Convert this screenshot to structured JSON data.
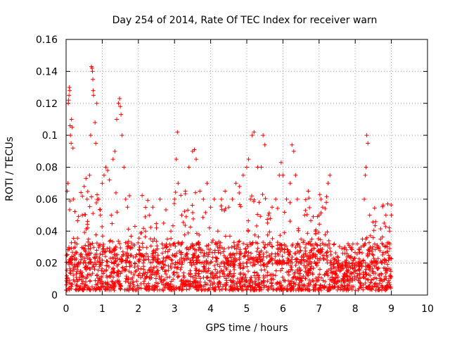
{
  "chart_data": {
    "type": "scatter",
    "title": "Day 254 of 2014, Rate Of TEC Index for receiver warn",
    "xlabel": "GPS time / hours",
    "ylabel": "ROTI / TECUs",
    "xlim": [
      0,
      10
    ],
    "ylim": [
      0,
      0.16
    ],
    "x_ticks": [
      "0",
      "1",
      "2",
      "3",
      "4",
      "5",
      "6",
      "7",
      "8",
      "9",
      "10"
    ],
    "y_ticks": [
      "0",
      "0.02",
      "0.04",
      "0.06",
      "0.08",
      "0.1",
      "0.12",
      "0.14",
      "0.16"
    ],
    "grid": true,
    "marker": "+",
    "marker_color": "#ff0000",
    "data_time_range_hours": [
      0,
      9
    ],
    "series": [
      {
        "name": "ROTI",
        "points": [
          [
            0.02,
            0.012
          ],
          [
            0.03,
            0.065
          ],
          [
            0.05,
            0.07
          ],
          [
            0.06,
            0.12
          ],
          [
            0.07,
            0.122
          ],
          [
            0.08,
            0.125
          ],
          [
            0.09,
            0.13
          ],
          [
            0.1,
            0.128
          ],
          [
            0.11,
            0.106
          ],
          [
            0.12,
            0.1
          ],
          [
            0.14,
            0.095
          ],
          [
            0.15,
            0.11
          ],
          [
            0.17,
            0.105
          ],
          [
            0.19,
            0.092
          ],
          [
            0.2,
            0.06
          ],
          [
            0.25,
            0.03
          ],
          [
            0.3,
            0.032
          ],
          [
            0.35,
            0.02
          ],
          [
            0.4,
            0.015
          ],
          [
            0.45,
            0.05
          ],
          [
            0.5,
            0.068
          ],
          [
            0.55,
            0.073
          ],
          [
            0.58,
            0.06
          ],
          [
            0.6,
            0.042
          ],
          [
            0.62,
            0.035
          ],
          [
            0.65,
            0.075
          ],
          [
            0.68,
            0.1
          ],
          [
            0.7,
            0.143
          ],
          [
            0.72,
            0.142
          ],
          [
            0.73,
            0.14
          ],
          [
            0.74,
            0.135
          ],
          [
            0.75,
            0.128
          ],
          [
            0.76,
            0.125
          ],
          [
            0.8,
            0.108
          ],
          [
            0.82,
            0.095
          ],
          [
            0.85,
            0.12
          ],
          [
            0.9,
            0.06
          ],
          [
            0.95,
            0.05
          ],
          [
            1.0,
            0.07
          ],
          [
            1.05,
            0.075
          ],
          [
            1.1,
            0.08
          ],
          [
            1.15,
            0.078
          ],
          [
            1.2,
            0.072
          ],
          [
            1.25,
            0.05
          ],
          [
            1.3,
            0.085
          ],
          [
            1.35,
            0.09
          ],
          [
            1.4,
            0.11
          ],
          [
            1.45,
            0.12
          ],
          [
            1.48,
            0.123
          ],
          [
            1.5,
            0.118
          ],
          [
            1.52,
            0.113
          ],
          [
            1.55,
            0.1
          ],
          [
            1.6,
            0.08
          ],
          [
            1.65,
            0.06
          ],
          [
            1.7,
            0.055
          ],
          [
            1.75,
            0.03
          ],
          [
            1.8,
            0.025
          ],
          [
            1.9,
            0.02
          ],
          [
            2.0,
            0.022
          ],
          [
            2.1,
            0.025
          ],
          [
            2.2,
            0.04
          ],
          [
            2.3,
            0.05
          ],
          [
            2.4,
            0.055
          ],
          [
            2.5,
            0.042
          ],
          [
            2.6,
            0.06
          ],
          [
            2.7,
            0.045
          ],
          [
            2.8,
            0.035
          ],
          [
            2.9,
            0.04
          ],
          [
            3.0,
            0.06
          ],
          [
            3.05,
            0.085
          ],
          [
            3.08,
            0.102
          ],
          [
            3.1,
            0.07
          ],
          [
            3.2,
            0.05
          ],
          [
            3.3,
            0.065
          ],
          [
            3.4,
            0.08
          ],
          [
            3.5,
            0.09
          ],
          [
            3.55,
            0.091
          ],
          [
            3.6,
            0.085
          ],
          [
            3.7,
            0.065
          ],
          [
            3.8,
            0.06
          ],
          [
            3.9,
            0.07
          ],
          [
            4.0,
            0.055
          ],
          [
            4.1,
            0.06
          ],
          [
            4.2,
            0.04
          ],
          [
            4.3,
            0.06
          ],
          [
            4.4,
            0.065
          ],
          [
            4.5,
            0.055
          ],
          [
            4.6,
            0.06
          ],
          [
            4.7,
            0.07
          ],
          [
            4.8,
            0.068
          ],
          [
            4.9,
            0.075
          ],
          [
            5.0,
            0.08
          ],
          [
            5.05,
            0.085
          ],
          [
            5.1,
            0.06
          ],
          [
            5.15,
            0.1
          ],
          [
            5.2,
            0.102
          ],
          [
            5.3,
            0.08
          ],
          [
            5.4,
            0.08
          ],
          [
            5.45,
            0.1
          ],
          [
            5.5,
            0.094
          ],
          [
            5.6,
            0.05
          ],
          [
            5.7,
            0.055
          ],
          [
            5.8,
            0.06
          ],
          [
            5.9,
            0.075
          ],
          [
            5.95,
            0.083
          ],
          [
            6.0,
            0.075
          ],
          [
            6.1,
            0.06
          ],
          [
            6.2,
            0.07
          ],
          [
            6.25,
            0.094
          ],
          [
            6.3,
            0.09
          ],
          [
            6.35,
            0.075
          ],
          [
            6.4,
            0.06
          ],
          [
            6.5,
            0.035
          ],
          [
            6.6,
            0.05
          ],
          [
            6.7,
            0.065
          ],
          [
            6.8,
            0.035
          ],
          [
            6.9,
            0.04
          ],
          [
            7.0,
            0.05
          ],
          [
            7.05,
            0.06
          ],
          [
            7.1,
            0.055
          ],
          [
            7.2,
            0.058
          ],
          [
            7.25,
            0.07
          ],
          [
            7.3,
            0.075
          ],
          [
            7.4,
            0.02
          ],
          [
            7.6,
            0.018
          ],
          [
            7.8,
            0.015
          ],
          [
            8.0,
            0.015
          ],
          [
            8.1,
            0.02
          ],
          [
            8.2,
            0.035
          ],
          [
            8.25,
            0.06
          ],
          [
            8.28,
            0.075
          ],
          [
            8.3,
            0.08
          ],
          [
            8.32,
            0.1
          ],
          [
            8.35,
            0.095
          ],
          [
            8.4,
            0.05
          ],
          [
            8.5,
            0.025
          ],
          [
            8.6,
            0.03
          ],
          [
            8.7,
            0.035
          ],
          [
            8.8,
            0.045
          ],
          [
            8.85,
            0.05
          ],
          [
            8.9,
            0.057
          ],
          [
            8.95,
            0.04
          ],
          [
            9.0,
            0.05
          ]
        ]
      }
    ]
  }
}
